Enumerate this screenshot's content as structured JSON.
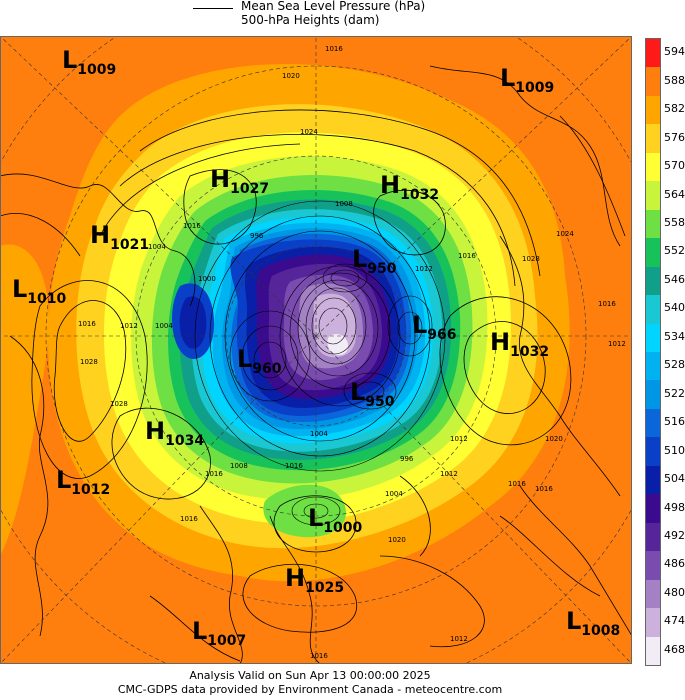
{
  "header": {
    "line_label": "Mean Sea Level Pressure (hPa)",
    "shade_label": "500-hPa Heights (dam)"
  },
  "footer": {
    "valid": "Analysis Valid on Sun Apr 13 00:00:00 2025",
    "credit": "CMC-GDPS data provided by Environment Canada - meteocentre.com"
  },
  "colorbar": {
    "levels": [
      "594",
      "588",
      "582",
      "576",
      "570",
      "564",
      "558",
      "552",
      "546",
      "540",
      "534",
      "528",
      "522",
      "516",
      "510",
      "504",
      "498",
      "492",
      "486",
      "480",
      "474",
      "468"
    ],
    "colors": [
      "#ff1a1a",
      "#ff7f0e",
      "#ffa500",
      "#ffd21f",
      "#ffff33",
      "#c8f53c",
      "#6ee043",
      "#18c25a",
      "#10a08a",
      "#19c8d3",
      "#00d4ff",
      "#00b3f0",
      "#0096e6",
      "#0b66d9",
      "#0a3fc7",
      "#0a1fa8",
      "#3a0a8f",
      "#57259a",
      "#7a4cb0",
      "#a480c4",
      "#cbb1dc",
      "#f2ecf6"
    ]
  },
  "pressure_systems": [
    {
      "type": "L",
      "value": "1009"
    },
    {
      "type": "L",
      "value": "1009"
    },
    {
      "type": "H",
      "value": "1027"
    },
    {
      "type": "H",
      "value": "1032"
    },
    {
      "type": "H",
      "value": "1021"
    },
    {
      "type": "L",
      "value": "1010"
    },
    {
      "type": "L",
      "value": "950"
    },
    {
      "type": "L",
      "value": "966"
    },
    {
      "type": "H",
      "value": "1032"
    },
    {
      "type": "L",
      "value": "960"
    },
    {
      "type": "L",
      "value": "950"
    },
    {
      "type": "H",
      "value": "1034"
    },
    {
      "type": "L",
      "value": "1012"
    },
    {
      "type": "L",
      "value": "1000"
    },
    {
      "type": "H",
      "value": "1025"
    },
    {
      "type": "L",
      "value": "1007"
    },
    {
      "type": "L",
      "value": "1008"
    }
  ],
  "isobar_labels": [
    "1016",
    "1020",
    "1024",
    "1016",
    "996",
    "1008",
    "1016",
    "1012",
    "1028",
    "1024",
    "1004",
    "1000",
    "1016",
    "1012",
    "1004",
    "996",
    "1012",
    "1016",
    "1020",
    "1004",
    "1016",
    "1012",
    "1008",
    "1028",
    "1028",
    "1016",
    "1004",
    "1016",
    "1016",
    "1012",
    "1016",
    "1012",
    "1016",
    "1020"
  ]
}
